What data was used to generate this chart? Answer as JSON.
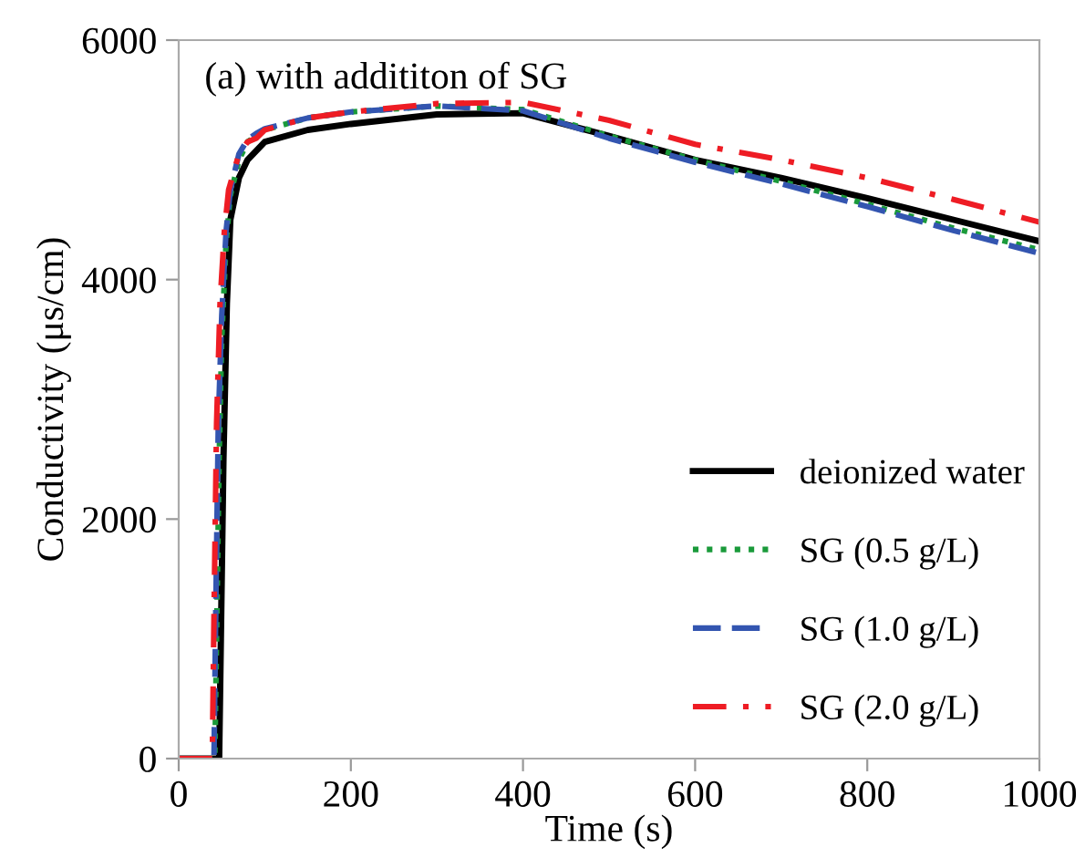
{
  "chart_data": {
    "type": "line",
    "xlabel": "Time (s)",
    "ylabel": "Conductivity (μs/cm)",
    "annotations": [
      "(a) with addititon of SG"
    ],
    "xlim": [
      0,
      1000
    ],
    "ylim": [
      0,
      6000
    ],
    "xticks": [
      0,
      200,
      400,
      600,
      800,
      1000
    ],
    "yticks": [
      0,
      2000,
      4000,
      6000
    ],
    "grid": false,
    "legend": "bottom right",
    "marker": "none",
    "series": [
      {
        "name": "deionized water",
        "color": "#000000",
        "line_style": "solid",
        "x": [
          0,
          47,
          49,
          52,
          56,
          60,
          70,
          80,
          100,
          150,
          200,
          300,
          400,
          500,
          600,
          700,
          800,
          900,
          1000
        ],
        "values": [
          0,
          0,
          1000,
          2500,
          3800,
          4500,
          4850,
          5000,
          5150,
          5250,
          5300,
          5380,
          5390,
          5200,
          5000,
          4850,
          4680,
          4500,
          4320
        ]
      },
      {
        "name": "SG (0.5 g/L)",
        "color": "#1a9a3a",
        "line_style": "dotted",
        "x": [
          0,
          42,
          44,
          47,
          50,
          55,
          60,
          70,
          80,
          90,
          100,
          150,
          200,
          300,
          400,
          500,
          600,
          700,
          800,
          900,
          1000
        ],
        "values": [
          0,
          0,
          1000,
          2500,
          3500,
          4300,
          4700,
          5000,
          5150,
          5200,
          5250,
          5350,
          5400,
          5450,
          5420,
          5200,
          5000,
          4820,
          4630,
          4430,
          4250
        ]
      },
      {
        "name": "SG (1.0 g/L)",
        "color": "#3355b0",
        "line_style": "dashed",
        "x": [
          0,
          41,
          43,
          46,
          50,
          55,
          60,
          70,
          80,
          90,
          100,
          150,
          200,
          300,
          400,
          500,
          600,
          700,
          800,
          900,
          1000
        ],
        "values": [
          0,
          0,
          1200,
          2800,
          3700,
          4400,
          4750,
          5050,
          5170,
          5220,
          5260,
          5350,
          5400,
          5450,
          5410,
          5180,
          4980,
          4800,
          4610,
          4410,
          4220
        ]
      },
      {
        "name": "SG (2.0 g/L)",
        "color": "#ee1c24",
        "line_style": "dashdot",
        "x": [
          0,
          39,
          41,
          44,
          48,
          53,
          58,
          70,
          80,
          90,
          100,
          150,
          200,
          300,
          400,
          500,
          600,
          700,
          800,
          900,
          1000
        ],
        "values": [
          0,
          0,
          1200,
          2800,
          3800,
          4400,
          4750,
          5050,
          5150,
          5180,
          5250,
          5350,
          5400,
          5470,
          5480,
          5330,
          5130,
          5000,
          4850,
          4670,
          4480
        ]
      }
    ]
  }
}
